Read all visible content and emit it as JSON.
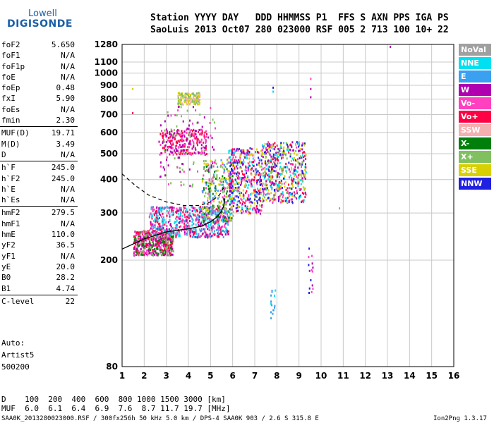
{
  "logo": {
    "line1": "Lowell",
    "line2": "DIGISONDE"
  },
  "header": {
    "line1": "Station YYYY DAY   DDD HHMMSS P1  FFS S AXN PPS IGA PS",
    "line2": "SaoLuis 2013 Oct07 280 023000 RSF 005 2 713 100 10+ 22"
  },
  "params": [
    {
      "name": "foF2",
      "value": "5.650"
    },
    {
      "name": "foF1",
      "value": "N/A"
    },
    {
      "name": "foF1p",
      "value": "N/A"
    },
    {
      "name": "foE",
      "value": "N/A"
    },
    {
      "name": "foEp",
      "value": "0.48"
    },
    {
      "name": "fxI",
      "value": "5.90"
    },
    {
      "name": "foEs",
      "value": "N/A"
    },
    {
      "name": "fmin",
      "value": "2.30"
    },
    {
      "name": "MUF(D)",
      "value": "19.71"
    },
    {
      "name": "M(D)",
      "value": "3.49"
    },
    {
      "name": "D",
      "value": "N/A"
    },
    {
      "name": "h`F",
      "value": "245.0"
    },
    {
      "name": "h`F2",
      "value": "245.0"
    },
    {
      "name": "h`E",
      "value": "N/A"
    },
    {
      "name": "h`Es",
      "value": "N/A"
    },
    {
      "name": "hmF2",
      "value": "279.5"
    },
    {
      "name": "hmF1",
      "value": "N/A"
    },
    {
      "name": "hmE",
      "value": "110.0"
    },
    {
      "name": "yF2",
      "value": "36.5"
    },
    {
      "name": "yF1",
      "value": "N/A"
    },
    {
      "name": "yE",
      "value": "20.0"
    },
    {
      "name": "B0",
      "value": "28.2"
    },
    {
      "name": "B1",
      "value": "4.74"
    },
    {
      "name": "C-level",
      "value": "22"
    }
  ],
  "auto": {
    "line1": "Auto:",
    "line2": "Artist5",
    "line3": "500200"
  },
  "legend": [
    {
      "label": "NoVal",
      "color": "#a0a0a0"
    },
    {
      "label": "NNE",
      "color": "#00e0f0"
    },
    {
      "label": "E",
      "color": "#3aa0f0"
    },
    {
      "label": "W",
      "color": "#b000b0"
    },
    {
      "label": "Vo-",
      "color": "#ff40c0"
    },
    {
      "label": "Vo+",
      "color": "#ff0044"
    },
    {
      "label": "SSW",
      "color": "#f4b0b0"
    },
    {
      "label": "X-",
      "color": "#00800a"
    },
    {
      "label": "X+",
      "color": "#80c060"
    },
    {
      "label": "SSE",
      "color": "#d8d000"
    },
    {
      "label": "NNW",
      "color": "#2020e0"
    }
  ],
  "muf_table": {
    "d_line": "D    100  200  400  600  800 1000 1500 3000 [km]",
    "muf_line": "MUF  6.0  6.1  6.4  6.9  7.6  8.7 11.7 19.7 [MHz]"
  },
  "footer": {
    "left": "SAA0K_2013280023000.RSF / 300fx256h 50 kHz 5.0 km / DPS-4 SAA0K 903 / 2.6 S 315.8 E",
    "right": "Ion2Png 1.3.17"
  },
  "chart_data": {
    "type": "scatter",
    "title": "",
    "xlabel": "",
    "ylabel": "",
    "xlim": [
      1,
      16
    ],
    "ylim": [
      80,
      1280
    ],
    "y_scale": "log",
    "x_ticks": [
      1,
      2,
      3,
      4,
      5,
      6,
      7,
      8,
      9,
      10,
      11,
      12,
      13,
      14,
      15,
      16
    ],
    "y_ticks": [
      80,
      200,
      300,
      400,
      500,
      600,
      700,
      800,
      900,
      1000,
      1100,
      1280
    ],
    "grid": true,
    "clusters": [
      {
        "x": [
          1.5,
          3.3
        ],
        "y": [
          210,
          260
        ],
        "n": 520,
        "colors": [
          "#ff40c0",
          "#ff0044",
          "#b000b0",
          "#80c060",
          "#00800a"
        ]
      },
      {
        "x": [
          2.2,
          5.8
        ],
        "y": [
          245,
          320
        ],
        "n": 650,
        "colors": [
          "#ff40c0",
          "#ff0044",
          "#b000b0",
          "#3aa0f0",
          "#00e0f0"
        ]
      },
      {
        "x": [
          4.6,
          6.0
        ],
        "y": [
          280,
          480
        ],
        "n": 300,
        "colors": [
          "#80c060",
          "#d8d000",
          "#00800a",
          "#ff40c0",
          "#3aa0f0"
        ]
      },
      {
        "x": [
          5.8,
          7.3
        ],
        "y": [
          300,
          530
        ],
        "n": 450,
        "colors": [
          "#2020e0",
          "#ff40c0",
          "#ff0044",
          "#00e0f0",
          "#d8d000",
          "#b000b0"
        ]
      },
      {
        "x": [
          7.3,
          9.3
        ],
        "y": [
          330,
          560
        ],
        "n": 520,
        "colors": [
          "#2020e0",
          "#00e0f0",
          "#d8d000",
          "#ff40c0",
          "#b000b0",
          "#80c060",
          "#ff0044"
        ]
      },
      {
        "x": [
          2.7,
          4.8
        ],
        "y": [
          500,
          620
        ],
        "n": 240,
        "colors": [
          "#b000b0",
          "#ff40c0",
          "#ff0044"
        ]
      },
      {
        "x": [
          3.5,
          4.5
        ],
        "y": [
          770,
          850
        ],
        "n": 120,
        "colors": [
          "#d8d000",
          "#f4b0b0",
          "#80c060"
        ]
      },
      {
        "x": [
          2.6,
          5.2
        ],
        "y": [
          380,
          760
        ],
        "n": 110,
        "colors": [
          "#b000b0",
          "#ff40c0",
          "#80c060"
        ]
      },
      {
        "x": [
          7.7,
          7.9
        ],
        "y": [
          120,
          160
        ],
        "n": 15,
        "colors": [
          "#00e0f0",
          "#3aa0f0"
        ]
      },
      {
        "x": [
          9.4,
          9.6
        ],
        "y": [
          150,
          230
        ],
        "n": 15,
        "colors": [
          "#2020e0",
          "#b000b0",
          "#ff40c0"
        ]
      }
    ],
    "points": [
      {
        "x": 13.1,
        "y": 1265,
        "color": "#b000b0"
      },
      {
        "x": 9.5,
        "y": 960,
        "color": "#ff40c0"
      },
      {
        "x": 9.5,
        "y": 880,
        "color": "#b000b0"
      },
      {
        "x": 9.5,
        "y": 820,
        "color": "#b000b0"
      },
      {
        "x": 1.45,
        "y": 880,
        "color": "#d8d000"
      },
      {
        "x": 1.45,
        "y": 715,
        "color": "#ff0044"
      },
      {
        "x": 7.8,
        "y": 890,
        "color": "#2020e0"
      },
      {
        "x": 7.8,
        "y": 860,
        "color": "#00e0f0"
      },
      {
        "x": 10.8,
        "y": 315,
        "color": "#80c060"
      }
    ],
    "profile_curve": {
      "x": [
        1.0,
        2.0,
        3.0,
        4.0,
        4.6,
        5.0,
        5.3,
        5.5,
        5.6,
        5.65
      ],
      "y": [
        220,
        240,
        255,
        262,
        268,
        278,
        290,
        305,
        320,
        340
      ]
    },
    "extrapolated_curve": {
      "x": [
        1.0,
        1.6,
        2.2,
        3.0,
        3.8,
        4.5,
        5.0,
        5.4,
        5.65
      ],
      "y": [
        420,
        380,
        350,
        330,
        320,
        320,
        330,
        350,
        380
      ]
    }
  }
}
